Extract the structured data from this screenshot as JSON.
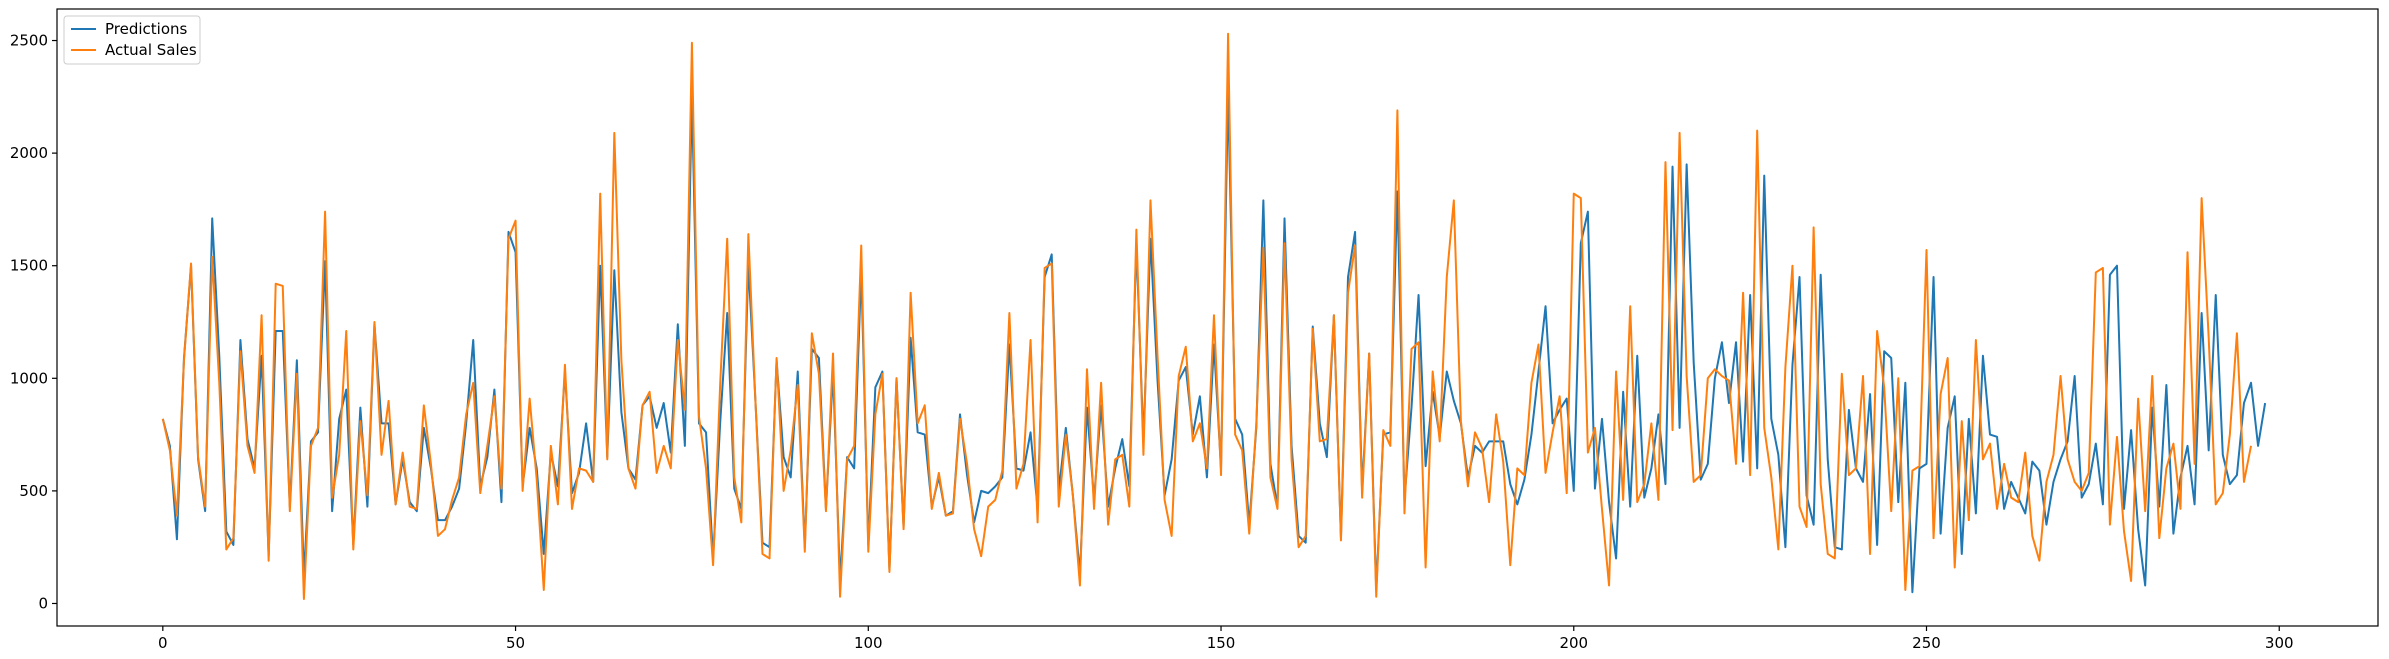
{
  "chart_data": {
    "type": "line",
    "title": "",
    "xlabel": "",
    "ylabel": "",
    "xlim": [
      -15,
      314
    ],
    "ylim": [
      -100,
      2640
    ],
    "x_ticks": [
      0,
      50,
      100,
      150,
      200,
      250,
      300
    ],
    "y_ticks": [
      0,
      500,
      1000,
      1500,
      2000,
      2500
    ],
    "grid": false,
    "legend_position": "top-left",
    "series": [
      {
        "name": "Predictions",
        "color": "#1f77b4",
        "values": [
          820,
          700,
          285,
          1090,
          1500,
          640,
          410,
          1710,
          1100,
          320,
          260,
          1170,
          730,
          600,
          1100,
          210,
          1210,
          1210,
          430,
          1080,
          120,
          720,
          760,
          1520,
          410,
          820,
          950,
          260,
          870,
          430,
          1240,
          800,
          800,
          440,
          640,
          450,
          410,
          780,
          600,
          370,
          370,
          430,
          510,
          800,
          1170,
          520,
          650,
          950,
          450,
          1650,
          1560,
          520,
          780,
          600,
          220,
          670,
          520,
          1030,
          490,
          580,
          800,
          540,
          1500,
          650,
          1480,
          850,
          600,
          550,
          880,
          920,
          780,
          890,
          670,
          1240,
          700,
          2260,
          800,
          760,
          200,
          800,
          1290,
          510,
          420,
          1510,
          900,
          270,
          250,
          1080,
          650,
          560,
          1030,
          250,
          1130,
          1090,
          420,
          1030,
          100,
          650,
          600,
          1480,
          260,
          960,
          1030,
          150,
          1000,
          340,
          1180,
          760,
          750,
          430,
          560,
          390,
          410,
          840,
          570,
          360,
          500,
          490,
          520,
          560,
          1150,
          600,
          590,
          760,
          420,
          1450,
          1550,
          500,
          780,
          480,
          130,
          870,
          460,
          880,
          430,
          600,
          730,
          520,
          1600,
          720,
          1620,
          990,
          480,
          640,
          990,
          1050,
          750,
          920,
          560,
          1150,
          600,
          2280,
          820,
          750,
          350,
          780,
          1790,
          620,
          430,
          1710,
          700,
          300,
          270,
          1230,
          800,
          650,
          1280,
          290,
          1450,
          1650,
          500,
          1110,
          60,
          750,
          760,
          1830,
          460,
          870,
          1370,
          610,
          940,
          740,
          1030,
          900,
          800,
          560,
          700,
          670,
          720,
          720,
          720,
          530,
          440,
          550,
          750,
          1030,
          1320,
          800,
          860,
          910,
          500,
          1600,
          1740,
          510,
          820,
          450,
          200,
          940,
          430,
          1100,
          470,
          600,
          840,
          530,
          1940,
          780,
          1950,
          1070,
          550,
          620,
          1000,
          1160,
          890,
          1160,
          630,
          1370,
          600,
          1900,
          820,
          660,
          250,
          1060,
          1450,
          480,
          350,
          1460,
          640,
          250,
          240,
          860,
          600,
          540,
          930,
          260,
          1120,
          1090,
          450,
          980,
          50,
          600,
          620,
          1450,
          310,
          780,
          920,
          220,
          820,
          400,
          1100,
          750,
          740,
          420,
          540,
          470,
          400,
          630,
          590,
          350,
          540,
          640,
          720,
          1010,
          470,
          530,
          710,
          440,
          1460,
          1500,
          420,
          770,
          330,
          80,
          870,
          430,
          970,
          310,
          560,
          700,
          440,
          1290,
          680,
          1370,
          660,
          530,
          570,
          890,
          980,
          700,
          890
        ]
      },
      {
        "name": "Actual Sales",
        "color": "#ff7f0e",
        "values": [
          820,
          680,
          390,
          1080,
          1510,
          650,
          430,
          1540,
          980,
          240,
          290,
          1120,
          700,
          580,
          1280,
          190,
          1420,
          1410,
          410,
          1020,
          20,
          700,
          780,
          1740,
          470,
          660,
          1210,
          240,
          810,
          480,
          1250,
          660,
          900,
          440,
          670,
          430,
          420,
          880,
          620,
          300,
          330,
          460,
          560,
          840,
          980,
          490,
          700,
          920,
          510,
          1620,
          1700,
          500,
          910,
          550,
          60,
          700,
          440,
          1060,
          420,
          600,
          590,
          540,
          1820,
          640,
          2090,
          1080,
          600,
          510,
          880,
          940,
          580,
          700,
          600,
          1170,
          860,
          2490,
          830,
          600,
          170,
          970,
          1620,
          560,
          360,
          1640,
          900,
          220,
          200,
          1090,
          500,
          680,
          970,
          230,
          1200,
          1020,
          410,
          1110,
          30,
          640,
          700,
          1590,
          230,
          840,
          1020,
          140,
          1000,
          330,
          1380,
          800,
          880,
          420,
          580,
          390,
          400,
          820,
          620,
          330,
          210,
          430,
          460,
          590,
          1290,
          510,
          620,
          1170,
          360,
          1490,
          1510,
          430,
          750,
          480,
          80,
          1040,
          420,
          980,
          350,
          640,
          660,
          430,
          1660,
          660,
          1790,
          1100,
          460,
          300,
          1010,
          1140,
          720,
          800,
          600,
          1280,
          570,
          2530,
          750,
          680,
          310,
          800,
          1580,
          560,
          420,
          1600,
          640,
          250,
          300,
          1220,
          720,
          730,
          1280,
          280,
          1380,
          1590,
          470,
          1110,
          30,
          770,
          700,
          2190,
          400,
          1130,
          1160,
          160,
          1030,
          720,
          1450,
          1790,
          810,
          520,
          760,
          690,
          450,
          840,
          630,
          170,
          600,
          570,
          980,
          1150,
          580,
          760,
          920,
          490,
          1820,
          1800,
          670,
          780,
          420,
          80,
          1030,
          460,
          1320,
          450,
          530,
          800,
          460,
          1960,
          770,
          2090,
          1010,
          540,
          570,
          1000,
          1040,
          1010,
          990,
          620,
          1380,
          570,
          2100,
          780,
          560,
          240,
          1050,
          1500,
          430,
          340,
          1670,
          530,
          220,
          200,
          1020,
          570,
          600,
          1010,
          220,
          1210,
          960,
          410,
          1000,
          60,
          590,
          610,
          1570,
          290,
          930,
          1090,
          160,
          810,
          370,
          1170,
          640,
          710,
          420,
          620,
          470,
          450,
          670,
          300,
          190,
          540,
          660,
          1010,
          640,
          540,
          500,
          580,
          1470,
          1490,
          350,
          740,
          320,
          100,
          910,
          410,
          1010,
          290,
          600,
          710,
          420,
          1560,
          620,
          1800,
          1180,
          440,
          490,
          750,
          1200,
          540,
          700
        ]
      }
    ]
  }
}
